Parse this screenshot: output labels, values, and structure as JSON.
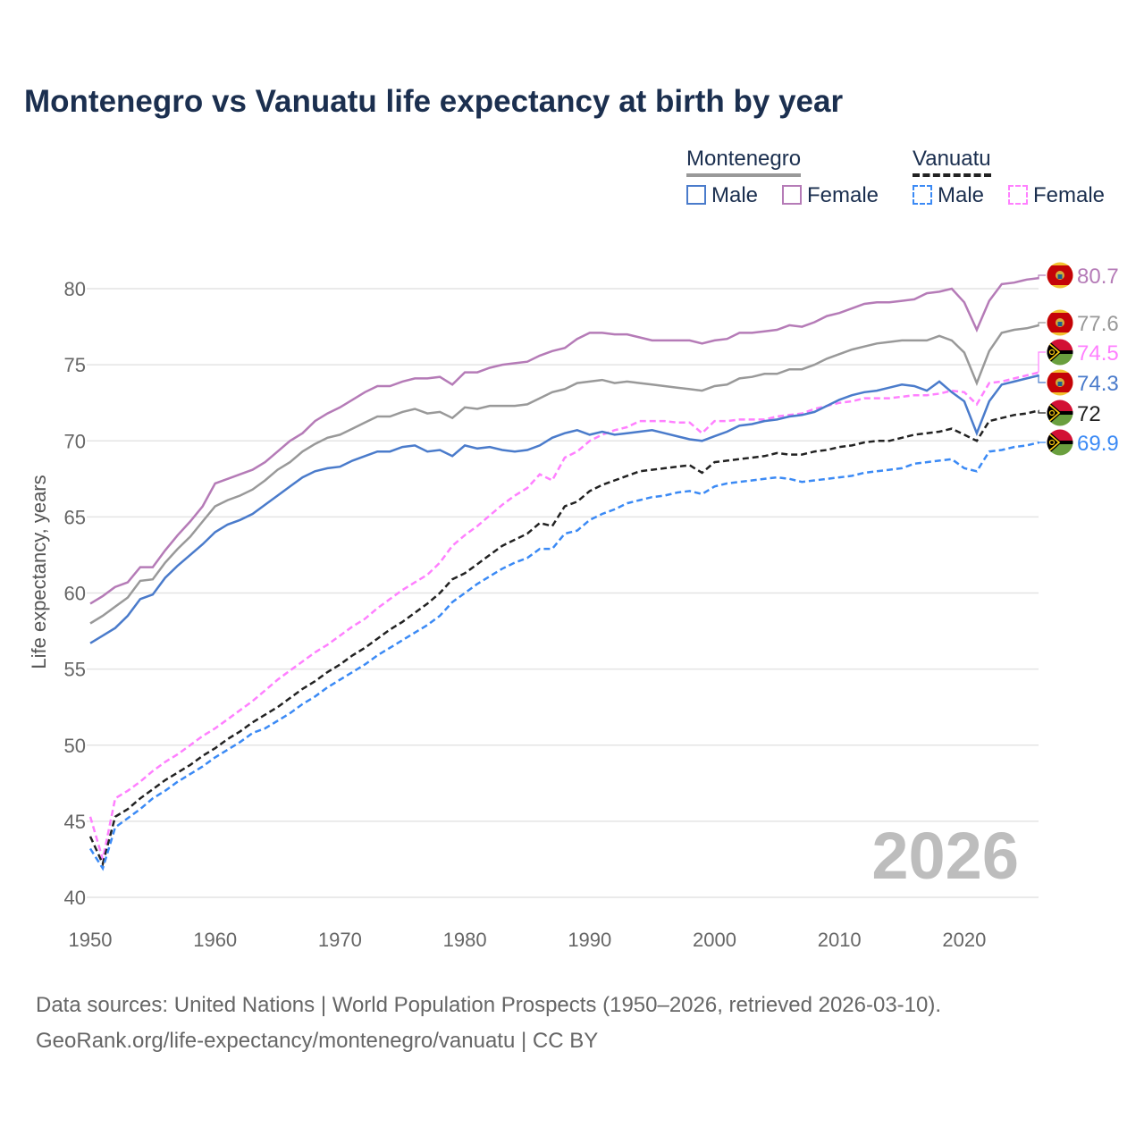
{
  "title": "Montenegro vs Vanuatu life expectancy at birth by year",
  "legend": {
    "montenegro": "Montenegro",
    "vanuatu": "Vanuatu",
    "male": "Male",
    "female": "Female"
  },
  "footer": {
    "line1": "Data sources: United Nations | World Population Prospects (1950–2026, retrieved 2026-03-10).",
    "line2": "GeoRank.org/life-expectancy/montenegro/vanuatu | CC BY"
  },
  "chart_data": {
    "type": "line",
    "title": "Montenegro vs Vanuatu life expectancy at birth by year",
    "xlabel": "",
    "ylabel": "Life expectancy, years",
    "xlim": [
      1950,
      2026
    ],
    "ylim": [
      40,
      82
    ],
    "xticks": [
      "1950",
      "1960",
      "1970",
      "1980",
      "1990",
      "2000",
      "2010",
      "2020"
    ],
    "yticks": [
      "40",
      "45",
      "50",
      "55",
      "60",
      "65",
      "70",
      "75",
      "80"
    ],
    "year_watermark": "2026",
    "grid": true,
    "x_start": 1950,
    "series": [
      {
        "name": "Montenegro Female",
        "country": "Montenegro",
        "sex": "Female",
        "color": "#b57bb7",
        "dashed": false,
        "end_label": "80.7",
        "flag": "montenegro",
        "values": [
          59.3,
          59.8,
          60.4,
          60.7,
          61.7,
          61.7,
          62.8,
          63.8,
          64.7,
          65.7,
          67.2,
          67.5,
          67.8,
          68.1,
          68.6,
          69.3,
          70.0,
          70.5,
          71.3,
          71.8,
          72.2,
          72.7,
          73.2,
          73.6,
          73.6,
          73.9,
          74.1,
          74.1,
          74.2,
          73.7,
          74.5,
          74.5,
          74.8,
          75.0,
          75.1,
          75.2,
          75.6,
          75.9,
          76.1,
          76.7,
          77.1,
          77.1,
          77.0,
          77.0,
          76.8,
          76.6,
          76.6,
          76.6,
          76.6,
          76.4,
          76.6,
          76.7,
          77.1,
          77.1,
          77.2,
          77.3,
          77.6,
          77.5,
          77.8,
          78.2,
          78.4,
          78.7,
          79.0,
          79.1,
          79.1,
          79.2,
          79.3,
          79.7,
          79.8,
          80.0,
          79.1,
          77.3,
          79.2,
          80.3,
          80.4,
          80.6,
          80.7
        ]
      },
      {
        "name": "Montenegro",
        "country": "Montenegro",
        "sex": "Total",
        "color": "#999999",
        "dashed": false,
        "end_label": "77.6",
        "flag": "montenegro",
        "values": [
          58.0,
          58.5,
          59.1,
          59.7,
          60.8,
          60.9,
          62.0,
          62.9,
          63.7,
          64.7,
          65.7,
          66.1,
          66.4,
          66.8,
          67.4,
          68.1,
          68.6,
          69.3,
          69.8,
          70.2,
          70.4,
          70.8,
          71.2,
          71.6,
          71.6,
          71.9,
          72.1,
          71.8,
          71.9,
          71.5,
          72.2,
          72.1,
          72.3,
          72.3,
          72.3,
          72.4,
          72.8,
          73.2,
          73.4,
          73.8,
          73.9,
          74.0,
          73.8,
          73.9,
          73.8,
          73.7,
          73.6,
          73.5,
          73.4,
          73.3,
          73.6,
          73.7,
          74.1,
          74.2,
          74.4,
          74.4,
          74.7,
          74.7,
          75.0,
          75.4,
          75.7,
          76.0,
          76.2,
          76.4,
          76.5,
          76.6,
          76.6,
          76.6,
          76.9,
          76.6,
          75.8,
          73.8,
          75.9,
          77.1,
          77.3,
          77.4,
          77.6
        ]
      },
      {
        "name": "Vanuatu Female",
        "country": "Vanuatu",
        "sex": "Female",
        "color": "#ff80ff",
        "dashed": true,
        "end_label": "74.5",
        "flag": "vanuatu",
        "values": [
          45.3,
          42.5,
          46.5,
          47.0,
          47.6,
          48.3,
          48.9,
          49.4,
          50.0,
          50.6,
          51.1,
          51.7,
          52.3,
          52.9,
          53.6,
          54.3,
          54.9,
          55.5,
          56.1,
          56.6,
          57.2,
          57.8,
          58.3,
          59.0,
          59.6,
          60.2,
          60.7,
          61.2,
          62.0,
          63.1,
          63.8,
          64.4,
          65.1,
          65.8,
          66.4,
          66.9,
          67.8,
          67.4,
          68.9,
          69.3,
          70.0,
          70.4,
          70.7,
          70.9,
          71.3,
          71.3,
          71.3,
          71.2,
          71.2,
          70.5,
          71.3,
          71.3,
          71.4,
          71.4,
          71.4,
          71.6,
          71.7,
          71.8,
          72.1,
          72.3,
          72.5,
          72.6,
          72.8,
          72.8,
          72.8,
          72.9,
          73.0,
          73.0,
          73.1,
          73.3,
          73.2,
          72.4,
          73.8,
          73.9,
          74.1,
          74.3,
          74.5
        ]
      },
      {
        "name": "Montenegro Male",
        "country": "Montenegro",
        "sex": "Male",
        "color": "#4a7bcb",
        "dashed": false,
        "end_label": "74.3",
        "flag": "montenegro",
        "values": [
          56.7,
          57.2,
          57.7,
          58.5,
          59.6,
          59.9,
          61.0,
          61.8,
          62.5,
          63.2,
          64.0,
          64.5,
          64.8,
          65.2,
          65.8,
          66.4,
          67.0,
          67.6,
          68.0,
          68.2,
          68.3,
          68.7,
          69.0,
          69.3,
          69.3,
          69.6,
          69.7,
          69.3,
          69.4,
          69.0,
          69.7,
          69.5,
          69.6,
          69.4,
          69.3,
          69.4,
          69.7,
          70.2,
          70.5,
          70.7,
          70.4,
          70.6,
          70.4,
          70.5,
          70.6,
          70.7,
          70.5,
          70.3,
          70.1,
          70.0,
          70.3,
          70.6,
          71.0,
          71.1,
          71.3,
          71.4,
          71.6,
          71.7,
          71.9,
          72.3,
          72.7,
          73.0,
          73.2,
          73.3,
          73.5,
          73.7,
          73.6,
          73.3,
          73.9,
          73.2,
          72.6,
          70.5,
          72.6,
          73.7,
          73.9,
          74.1,
          74.3
        ]
      },
      {
        "name": "Vanuatu",
        "country": "Vanuatu",
        "sex": "Total",
        "color": "#222222",
        "dashed": true,
        "end_label": "72",
        "flag": "vanuatu",
        "values": [
          44.0,
          42.2,
          45.3,
          45.8,
          46.5,
          47.1,
          47.7,
          48.2,
          48.7,
          49.3,
          49.8,
          50.4,
          50.9,
          51.5,
          52.0,
          52.5,
          53.1,
          53.7,
          54.2,
          54.8,
          55.3,
          55.9,
          56.4,
          57.0,
          57.6,
          58.1,
          58.7,
          59.3,
          60.0,
          60.9,
          61.3,
          61.9,
          62.5,
          63.1,
          63.5,
          63.9,
          64.6,
          64.4,
          65.7,
          66.0,
          66.7,
          67.1,
          67.4,
          67.7,
          68.0,
          68.1,
          68.2,
          68.3,
          68.4,
          67.9,
          68.6,
          68.7,
          68.8,
          68.9,
          69.0,
          69.2,
          69.1,
          69.1,
          69.3,
          69.4,
          69.6,
          69.7,
          69.9,
          70.0,
          70.0,
          70.2,
          70.4,
          70.5,
          70.6,
          70.8,
          70.4,
          70.0,
          71.3,
          71.5,
          71.7,
          71.8,
          72.0
        ]
      },
      {
        "name": "Vanuatu Male",
        "country": "Vanuatu",
        "sex": "Male",
        "color": "#3b8af5",
        "dashed": true,
        "end_label": "69.9",
        "flag": "vanuatu",
        "values": [
          43.2,
          41.9,
          44.6,
          45.2,
          45.8,
          46.5,
          47.0,
          47.6,
          48.1,
          48.6,
          49.2,
          49.7,
          50.2,
          50.8,
          51.1,
          51.6,
          52.1,
          52.7,
          53.2,
          53.8,
          54.3,
          54.8,
          55.3,
          55.9,
          56.4,
          56.9,
          57.4,
          57.9,
          58.5,
          59.4,
          60.0,
          60.6,
          61.1,
          61.6,
          62.0,
          62.3,
          62.9,
          62.9,
          63.9,
          64.1,
          64.8,
          65.2,
          65.5,
          65.9,
          66.1,
          66.3,
          66.4,
          66.6,
          66.7,
          66.5,
          67.0,
          67.2,
          67.3,
          67.4,
          67.5,
          67.6,
          67.5,
          67.3,
          67.4,
          67.5,
          67.6,
          67.7,
          67.9,
          68.0,
          68.1,
          68.2,
          68.5,
          68.6,
          68.7,
          68.8,
          68.2,
          68.0,
          69.3,
          69.4,
          69.6,
          69.7,
          69.9
        ]
      }
    ]
  }
}
